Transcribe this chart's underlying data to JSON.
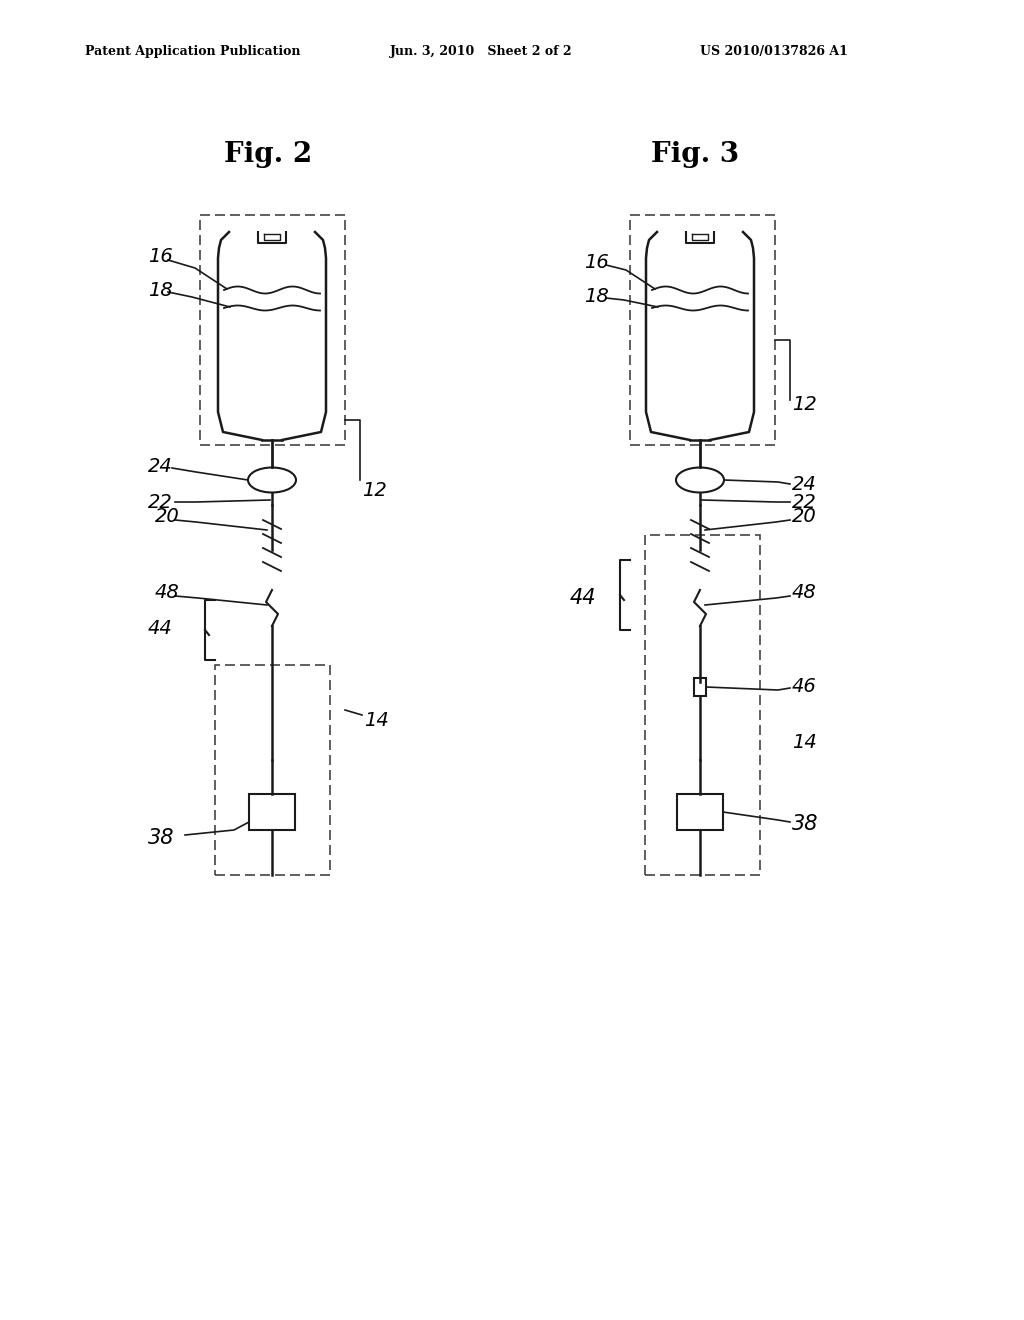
{
  "background_color": "#ffffff",
  "header_left": "Patent Application Publication",
  "header_center": "Jun. 3, 2010   Sheet 2 of 2",
  "header_right": "US 2010/0137826 A1",
  "fig2_title": "Fig. 2",
  "fig3_title": "Fig. 3",
  "line_color": "#1a1a1a",
  "text_color": "#000000"
}
